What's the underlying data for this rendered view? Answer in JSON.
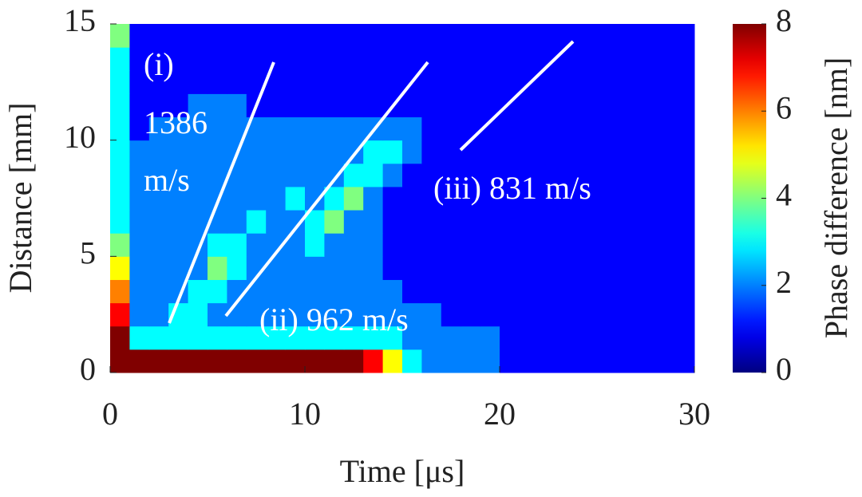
{
  "chart_data": {
    "type": "heatmap",
    "x_label": "Time [μs]",
    "y_label": "Distance [mm]",
    "colorbar_label": "Phase difference [nm]",
    "colormap": "jet",
    "xbins": [
      0,
      1,
      2,
      3,
      4,
      5,
      6,
      7,
      8,
      9,
      10,
      11,
      12,
      13,
      14,
      15,
      16,
      17,
      18,
      19,
      20,
      21,
      22,
      23,
      24,
      25,
      26,
      27,
      28,
      29,
      30
    ],
    "ybins": [
      0,
      1,
      2,
      3,
      4,
      5,
      6,
      7,
      8,
      9,
      10,
      11,
      12,
      13,
      14,
      15
    ],
    "z": [
      [
        8,
        8,
        8,
        8,
        8,
        8,
        8,
        8,
        8,
        8,
        8,
        8,
        8,
        7,
        5,
        3,
        2,
        2,
        2,
        2,
        1,
        1,
        1,
        1,
        1,
        1,
        1,
        1,
        1,
        1
      ],
      [
        8,
        3,
        3,
        3,
        3,
        3,
        3,
        3,
        3,
        3,
        3,
        3,
        3,
        3,
        3,
        2,
        2,
        2,
        2,
        2,
        1,
        1,
        1,
        1,
        1,
        1,
        1,
        1,
        1,
        1
      ],
      [
        7,
        2,
        2,
        3,
        3,
        2,
        2,
        2,
        2,
        2,
        2,
        2,
        2,
        2,
        2,
        2,
        2,
        1,
        1,
        1,
        1,
        1,
        1,
        1,
        1,
        1,
        1,
        1,
        1,
        1
      ],
      [
        6,
        2,
        2,
        2,
        3,
        3,
        2,
        2,
        2,
        2,
        2,
        2,
        2,
        2,
        2,
        1,
        1,
        1,
        1,
        1,
        1,
        1,
        1,
        1,
        1,
        1,
        1,
        1,
        1,
        1
      ],
      [
        5,
        2,
        2,
        2,
        2,
        4,
        3,
        2,
        2,
        2,
        2,
        2,
        2,
        2,
        1,
        1,
        1,
        1,
        1,
        1,
        1,
        1,
        1,
        1,
        1,
        1,
        1,
        1,
        1,
        1
      ],
      [
        4,
        2,
        2,
        2,
        2,
        3,
        3,
        2,
        2,
        2,
        3,
        2,
        2,
        2,
        1,
        1,
        1,
        1,
        1,
        1,
        1,
        1,
        1,
        1,
        1,
        1,
        1,
        1,
        1,
        1
      ],
      [
        3,
        2,
        2,
        2,
        2,
        2,
        2,
        3,
        2,
        2,
        3,
        4,
        2,
        2,
        1,
        1,
        1,
        1,
        1,
        1,
        1,
        1,
        1,
        1,
        1,
        1,
        1,
        1,
        1,
        1
      ],
      [
        3,
        2,
        2,
        2,
        2,
        2,
        2,
        2,
        2,
        3,
        2,
        3,
        4,
        2,
        1,
        1,
        1,
        1,
        1,
        1,
        1,
        1,
        1,
        1,
        1,
        1,
        1,
        1,
        1,
        1
      ],
      [
        3,
        2,
        2,
        2,
        2,
        2,
        2,
        2,
        2,
        2,
        2,
        2,
        3,
        3,
        2,
        1,
        1,
        1,
        1,
        1,
        1,
        1,
        1,
        1,
        1,
        1,
        1,
        1,
        1,
        1
      ],
      [
        3,
        2,
        2,
        2,
        2,
        2,
        2,
        2,
        2,
        2,
        2,
        2,
        2,
        3,
        3,
        2,
        1,
        1,
        1,
        1,
        1,
        1,
        1,
        1,
        1,
        1,
        1,
        1,
        1,
        1
      ],
      [
        3,
        1,
        2,
        2,
        2,
        2,
        2,
        2,
        2,
        2,
        2,
        2,
        2,
        2,
        2,
        2,
        1,
        1,
        1,
        1,
        1,
        1,
        1,
        1,
        1,
        1,
        1,
        1,
        1,
        1
      ],
      [
        3,
        1,
        1,
        1,
        2,
        2,
        2,
        1,
        1,
        1,
        1,
        1,
        1,
        1,
        1,
        1,
        1,
        1,
        1,
        1,
        1,
        1,
        1,
        1,
        1,
        1,
        1,
        1,
        1,
        1
      ],
      [
        3,
        1,
        1,
        1,
        1,
        1,
        1,
        1,
        1,
        1,
        1,
        1,
        1,
        1,
        1,
        1,
        1,
        1,
        1,
        1,
        1,
        1,
        1,
        1,
        1,
        1,
        1,
        1,
        1,
        1
      ],
      [
        3,
        1,
        1,
        1,
        1,
        1,
        1,
        1,
        1,
        1,
        1,
        1,
        1,
        1,
        1,
        1,
        1,
        1,
        1,
        1,
        1,
        1,
        1,
        1,
        1,
        1,
        1,
        1,
        1,
        1
      ],
      [
        4,
        1,
        1,
        1,
        1,
        1,
        1,
        1,
        1,
        1,
        1,
        1,
        1,
        1,
        1,
        1,
        1,
        1,
        1,
        1,
        1,
        1,
        1,
        1,
        1,
        1,
        1,
        1,
        1,
        1
      ]
    ],
    "xlim": [
      0,
      30
    ],
    "xticks": [
      0,
      10,
      20,
      30
    ],
    "ylim": [
      0,
      15
    ],
    "yticks": [
      0,
      5,
      10,
      15
    ],
    "zlim": [
      0,
      8
    ],
    "zticks": [
      0,
      2,
      4,
      6,
      8
    ],
    "annotations": [
      "(i)",
      "1386",
      "m/s",
      "(ii) 962 m/s",
      "(iii) 831 m/s"
    ]
  }
}
